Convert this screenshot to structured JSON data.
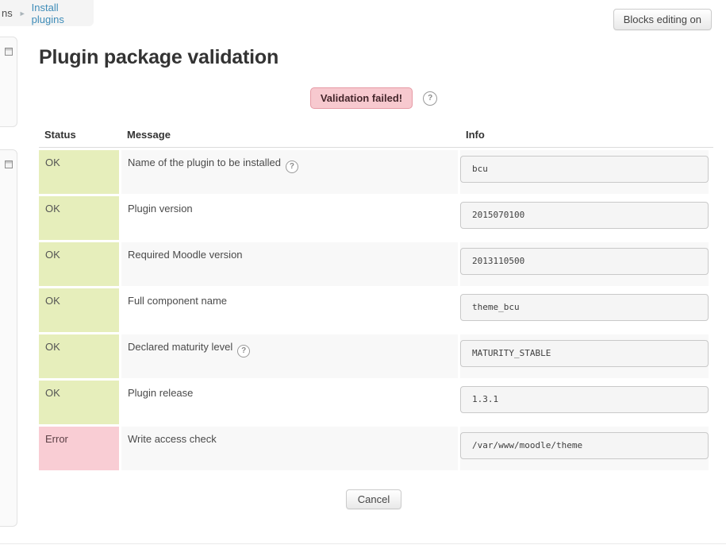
{
  "breadcrumb": {
    "truncated_text": "ns",
    "separator": "►",
    "link_label": "Install plugins"
  },
  "header": {
    "blocks_editing_button": "Blocks editing on"
  },
  "page": {
    "title": "Plugin package validation"
  },
  "validation": {
    "badge_label": "Validation failed!"
  },
  "icons": {
    "help": "?"
  },
  "table": {
    "columns": [
      "Status",
      "Message",
      "Info"
    ],
    "rows": [
      {
        "status": "OK",
        "status_type": "ok",
        "message": "Name of the plugin to be installed",
        "has_help": true,
        "info": "bcu"
      },
      {
        "status": "OK",
        "status_type": "ok",
        "message": "Plugin version",
        "has_help": false,
        "info": "2015070100"
      },
      {
        "status": "OK",
        "status_type": "ok",
        "message": "Required Moodle version",
        "has_help": false,
        "info": "2013110500"
      },
      {
        "status": "OK",
        "status_type": "ok",
        "message": "Full component name",
        "has_help": false,
        "info": "theme_bcu"
      },
      {
        "status": "OK",
        "status_type": "ok",
        "message": "Declared maturity level",
        "has_help": true,
        "info": "MATURITY_STABLE"
      },
      {
        "status": "OK",
        "status_type": "ok",
        "message": "Plugin release",
        "has_help": false,
        "info": "1.3.1"
      },
      {
        "status": "Error",
        "status_type": "error",
        "message": "Write access check",
        "has_help": false,
        "info": "/var/www/moodle/theme"
      }
    ]
  },
  "actions": {
    "cancel_label": "Cancel"
  },
  "colors": {
    "status_ok_bg": "#e6eebb",
    "status_error_bg": "#f9cdd4",
    "badge_bg": "#f7c9cf",
    "badge_border": "#e69aa5",
    "badge_text": "#44262b",
    "link": "#3e8cb8",
    "row_alt_bg": "#f8f8f8",
    "info_box_bg": "#f5f5f5"
  }
}
